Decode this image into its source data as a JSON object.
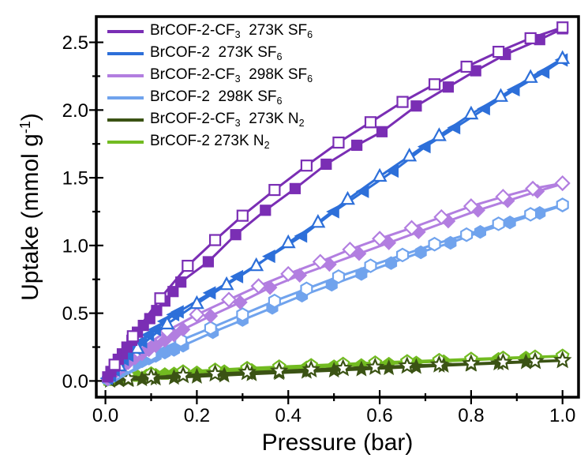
{
  "figure": {
    "background": "#ffffff",
    "frame_color": "#000000",
    "text_color": "#000000"
  },
  "chart_data": {
    "type": "line",
    "title": "",
    "xlabel": "Pressure (bar)",
    "ylabel": "Uptake (mmol g⁻¹)",
    "ylabel_parts": [
      {
        "t": "Uptake (mmol g"
      },
      {
        "t": "-1"
      },
      {
        "t": ")"
      }
    ],
    "xlim": [
      -0.02,
      1.035
    ],
    "ylim": [
      -0.12,
      2.69
    ],
    "grid": false,
    "legend_position": "top-left",
    "x_ticks": {
      "values": [
        0.0,
        0.2,
        0.4,
        0.6,
        0.8,
        1.0
      ],
      "labels": [
        "0.0",
        "0.2",
        "0.4",
        "0.6",
        "0.8",
        "1.0"
      ]
    },
    "y_ticks": {
      "values": [
        0.0,
        0.5,
        1.0,
        1.5,
        2.0,
        2.5
      ],
      "labels": [
        "0.0",
        "0.5",
        "1.0",
        "1.5",
        "2.0",
        "2.5"
      ]
    },
    "x_minor_ticks": [
      0.1,
      0.3,
      0.5,
      0.7,
      0.9
    ],
    "y_minor_ticks": [
      0.25,
      0.75,
      1.25,
      1.75,
      2.25
    ],
    "series": [
      {
        "name": "BrCOF-2-CF3 273K SF6",
        "label": "BrCOF-2-CF₃  273K SF₆",
        "label_parts": [
          {
            "t": "BrCOF-2-CF",
            "sub": false
          },
          {
            "t": "3",
            "sub": true
          },
          {
            "t": "  273K SF",
            "sub": false
          },
          {
            "t": "6",
            "sub": true
          }
        ],
        "color": "#7a2eb4",
        "marker_ads": "square",
        "marker_des": "square",
        "ads_fill": "filled",
        "des_fill": "open",
        "adsorption": {
          "x": [
            0.005,
            0.012,
            0.02,
            0.028,
            0.037,
            0.047,
            0.058,
            0.07,
            0.083,
            0.097,
            0.112,
            0.13,
            0.148,
            0.165,
            0.225,
            0.285,
            0.35,
            0.415,
            0.483,
            0.55,
            0.605,
            0.68,
            0.75,
            0.81,
            0.875,
            0.95,
            1.0
          ],
          "y": [
            0.03,
            0.07,
            0.11,
            0.16,
            0.2,
            0.25,
            0.3,
            0.36,
            0.41,
            0.46,
            0.52,
            0.59,
            0.66,
            0.73,
            0.88,
            1.08,
            1.26,
            1.42,
            1.6,
            1.74,
            1.84,
            2.03,
            2.17,
            2.29,
            2.41,
            2.52,
            2.6
          ]
        },
        "desorption": {
          "x": [
            1.0,
            0.93,
            0.86,
            0.79,
            0.72,
            0.65,
            0.58,
            0.51,
            0.44,
            0.37,
            0.3,
            0.24,
            0.18,
            0.12,
            0.06,
            0.02
          ],
          "y": [
            2.61,
            2.53,
            2.43,
            2.32,
            2.19,
            2.06,
            1.91,
            1.76,
            1.59,
            1.41,
            1.22,
            1.04,
            0.85,
            0.61,
            0.33,
            0.12
          ]
        }
      },
      {
        "name": "BrCOF-2 273K SF6",
        "label": "BrCOF-2  273K SF₆",
        "label_parts": [
          {
            "t": "BrCOF-2  273K SF",
            "sub": false
          },
          {
            "t": "6",
            "sub": true
          }
        ],
        "color": "#2d6fd9",
        "marker_ads": "triangle-left",
        "marker_des": "triangle-up",
        "ads_fill": "filled",
        "des_fill": "open",
        "adsorption": {
          "x": [
            0.005,
            0.012,
            0.02,
            0.03,
            0.04,
            0.05,
            0.065,
            0.08,
            0.095,
            0.11,
            0.13,
            0.15,
            0.16,
            0.23,
            0.29,
            0.36,
            0.43,
            0.5,
            0.565,
            0.63,
            0.7,
            0.765,
            0.83,
            0.895,
            0.96,
            1.0
          ],
          "y": [
            0.02,
            0.04,
            0.08,
            0.12,
            0.16,
            0.19,
            0.24,
            0.29,
            0.34,
            0.38,
            0.44,
            0.49,
            0.51,
            0.65,
            0.77,
            0.92,
            1.07,
            1.25,
            1.4,
            1.55,
            1.73,
            1.87,
            2.01,
            2.15,
            2.28,
            2.37
          ]
        },
        "desorption": {
          "x": [
            1.0,
            0.93,
            0.865,
            0.8,
            0.73,
            0.665,
            0.6,
            0.53,
            0.465,
            0.4,
            0.33,
            0.265,
            0.2,
            0.135,
            0.07,
            0.03
          ],
          "y": [
            2.38,
            2.24,
            2.1,
            1.97,
            1.81,
            1.66,
            1.51,
            1.34,
            1.17,
            1.02,
            0.85,
            0.71,
            0.57,
            0.42,
            0.24,
            0.11
          ]
        }
      },
      {
        "name": "BrCOF-2-CF3 298K SF6",
        "label": "BrCOF-2-CF₃  298K SF₆",
        "label_parts": [
          {
            "t": "BrCOF-2-CF",
            "sub": false
          },
          {
            "t": "3",
            "sub": true
          },
          {
            "t": "  298K SF",
            "sub": false
          },
          {
            "t": "6",
            "sub": true
          }
        ],
        "color": "#b27ee0",
        "marker_ads": "diamond",
        "marker_des": "diamond",
        "ads_fill": "filled",
        "des_fill": "open",
        "adsorption": {
          "x": [
            0.005,
            0.012,
            0.02,
            0.03,
            0.04,
            0.05,
            0.065,
            0.08,
            0.095,
            0.11,
            0.13,
            0.15,
            0.17,
            0.23,
            0.295,
            0.36,
            0.425,
            0.49,
            0.555,
            0.62,
            0.685,
            0.75,
            0.815,
            0.88,
            0.945,
            1.0
          ],
          "y": [
            0.015,
            0.035,
            0.06,
            0.085,
            0.11,
            0.135,
            0.17,
            0.2,
            0.23,
            0.26,
            0.3,
            0.34,
            0.38,
            0.48,
            0.58,
            0.69,
            0.78,
            0.86,
            0.94,
            1.02,
            1.1,
            1.18,
            1.26,
            1.33,
            1.4,
            1.455
          ]
        },
        "desorption": {
          "x": [
            1.0,
            0.935,
            0.87,
            0.8,
            0.735,
            0.67,
            0.6,
            0.535,
            0.47,
            0.4,
            0.335,
            0.27,
            0.2,
            0.135,
            0.07,
            0.03
          ],
          "y": [
            1.46,
            1.42,
            1.36,
            1.29,
            1.21,
            1.13,
            1.05,
            0.97,
            0.88,
            0.79,
            0.7,
            0.6,
            0.49,
            0.37,
            0.22,
            0.1
          ]
        }
      },
      {
        "name": "BrCOF-2 298K SF6",
        "label": "BrCOF-2  298K SF₆",
        "label_parts": [
          {
            "t": "BrCOF-2  298K SF",
            "sub": false
          },
          {
            "t": "6",
            "sub": true
          }
        ],
        "color": "#70a3ed",
        "marker_ads": "hexagon",
        "marker_des": "hexagon",
        "ads_fill": "filled",
        "des_fill": "open",
        "adsorption": {
          "x": [
            0.005,
            0.012,
            0.02,
            0.03,
            0.04,
            0.05,
            0.065,
            0.08,
            0.095,
            0.11,
            0.13,
            0.15,
            0.17,
            0.235,
            0.3,
            0.365,
            0.43,
            0.495,
            0.56,
            0.625,
            0.69,
            0.755,
            0.82,
            0.885,
            0.95,
            1.0
          ],
          "y": [
            0.01,
            0.025,
            0.04,
            0.06,
            0.08,
            0.095,
            0.12,
            0.145,
            0.165,
            0.185,
            0.21,
            0.23,
            0.26,
            0.36,
            0.45,
            0.54,
            0.63,
            0.71,
            0.79,
            0.87,
            0.95,
            1.02,
            1.1,
            1.17,
            1.24,
            1.295
          ]
        },
        "desorption": {
          "x": [
            1.0,
            0.93,
            0.86,
            0.79,
            0.72,
            0.65,
            0.58,
            0.51,
            0.44,
            0.37,
            0.3,
            0.23,
            0.165,
            0.1,
            0.05,
            0.02
          ],
          "y": [
            1.3,
            1.23,
            1.16,
            1.08,
            1.01,
            0.93,
            0.85,
            0.77,
            0.68,
            0.59,
            0.49,
            0.39,
            0.3,
            0.2,
            0.11,
            0.05
          ]
        }
      },
      {
        "name": "BrCOF-2-CF3 273K N2",
        "label": "BrCOF-2-CF₃  273K N₂",
        "label_parts": [
          {
            "t": "BrCOF-2-CF",
            "sub": false
          },
          {
            "t": "3",
            "sub": true
          },
          {
            "t": "  273K N",
            "sub": false
          },
          {
            "t": "2",
            "sub": true
          }
        ],
        "color": "#3b5314",
        "marker_ads": "star",
        "marker_des": "star",
        "ads_fill": "filled",
        "des_fill": "open",
        "adsorption": {
          "x": [
            0.01,
            0.03,
            0.05,
            0.08,
            0.11,
            0.15,
            0.2,
            0.26,
            0.32,
            0.38,
            0.44,
            0.5,
            0.56,
            0.62,
            0.68,
            0.74,
            0.8,
            0.86,
            0.92,
            1.0
          ],
          "y": [
            0.002,
            0.005,
            0.008,
            0.013,
            0.018,
            0.024,
            0.032,
            0.041,
            0.05,
            0.059,
            0.068,
            0.077,
            0.086,
            0.095,
            0.104,
            0.113,
            0.122,
            0.13,
            0.139,
            0.15
          ]
        },
        "desorption": {
          "x": [
            1.0,
            0.94,
            0.87,
            0.8,
            0.73,
            0.66,
            0.59,
            0.52,
            0.45,
            0.38,
            0.31,
            0.24,
            0.17,
            0.1,
            0.05
          ],
          "y": [
            0.152,
            0.145,
            0.137,
            0.128,
            0.12,
            0.111,
            0.102,
            0.093,
            0.084,
            0.074,
            0.064,
            0.053,
            0.041,
            0.028,
            0.016
          ]
        }
      },
      {
        "name": "BrCOF-2 273K N2",
        "label": "BrCOF-2 273K N₂",
        "label_parts": [
          {
            "t": "BrCOF-2 273K N",
            "sub": false
          },
          {
            "t": "2",
            "sub": true
          }
        ],
        "color": "#72bb21",
        "marker_ads": "pentagon",
        "marker_des": "pentagon",
        "ads_fill": "filled",
        "des_fill": "open",
        "adsorption": {
          "x": [
            0.005,
            0.015,
            0.03,
            0.05,
            0.07,
            0.09,
            0.11,
            0.13,
            0.15,
            0.2,
            0.26,
            0.32,
            0.38,
            0.44,
            0.5,
            0.56,
            0.62,
            0.68,
            0.74,
            0.8,
            0.86,
            0.92,
            1.0
          ],
          "y": [
            0.005,
            0.012,
            0.02,
            0.028,
            0.035,
            0.04,
            0.045,
            0.05,
            0.055,
            0.063,
            0.072,
            0.081,
            0.09,
            0.099,
            0.108,
            0.117,
            0.127,
            0.136,
            0.145,
            0.154,
            0.163,
            0.172,
            0.182
          ]
        },
        "desorption": {
          "x": [
            1.0,
            0.94,
            0.87,
            0.8,
            0.73,
            0.66,
            0.59,
            0.52,
            0.45,
            0.38,
            0.31,
            0.24,
            0.17,
            0.1,
            0.05
          ],
          "y": [
            0.185,
            0.178,
            0.17,
            0.162,
            0.153,
            0.144,
            0.135,
            0.125,
            0.115,
            0.105,
            0.094,
            0.082,
            0.069,
            0.054,
            0.04
          ]
        }
      }
    ]
  }
}
